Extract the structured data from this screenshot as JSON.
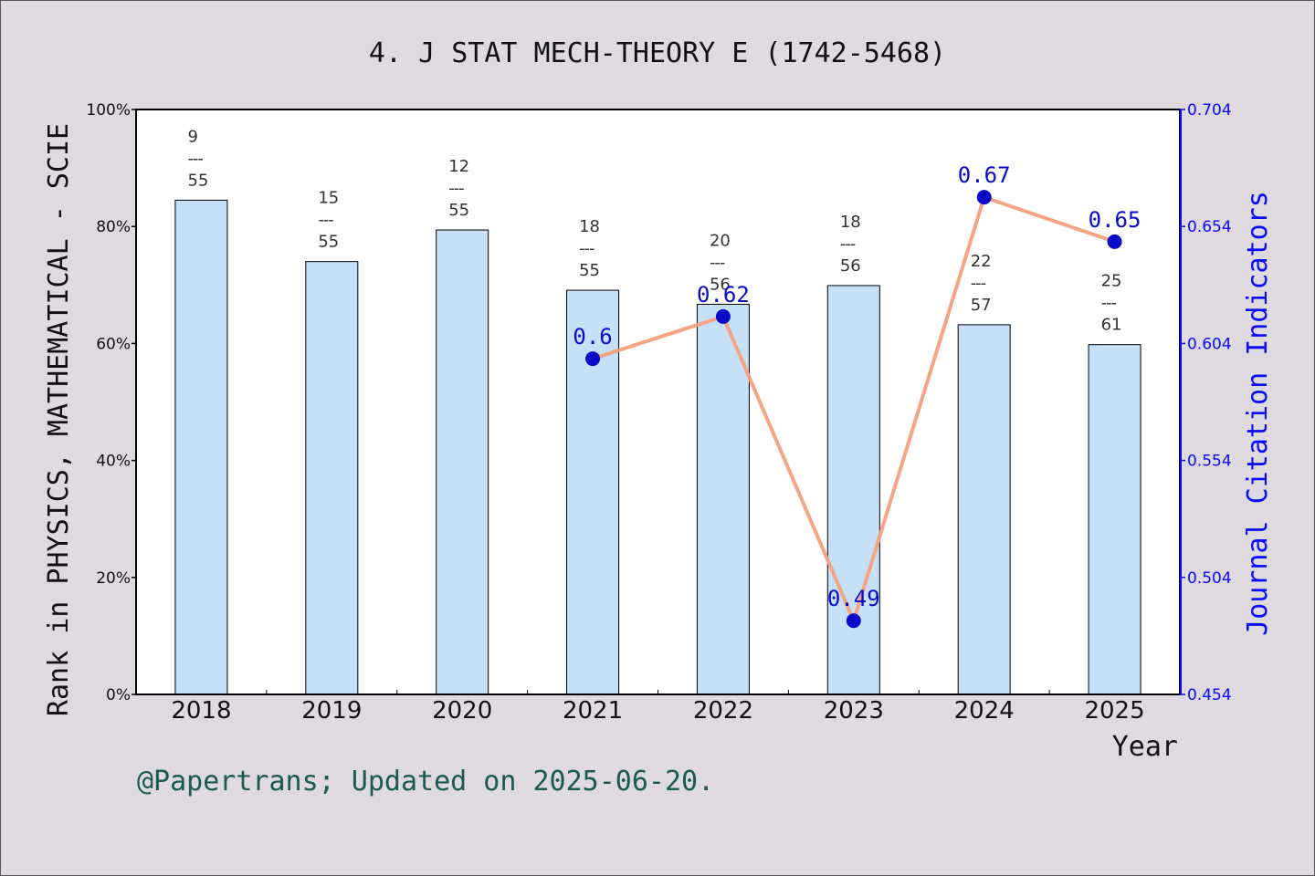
{
  "chart_data": {
    "type": "bar",
    "title": "4. J STAT MECH-THEORY E (1742-5468)",
    "xlabel": "Year",
    "ylabel": "Rank in PHYSICS, MATHEMATICAL - SCIE",
    "y2label": "Journal Citation Indicators",
    "categories": [
      "2018",
      "2019",
      "2020",
      "2021",
      "2022",
      "2023",
      "2024",
      "2025"
    ],
    "ylim": [
      0,
      100
    ],
    "yticks": [
      "0%",
      "20%",
      "40%",
      "60%",
      "80%",
      "100%"
    ],
    "y2lim": [
      0.454,
      0.704
    ],
    "y2ticks": [
      "0.454",
      "0.504",
      "0.554",
      "0.604",
      "0.654",
      "0.704"
    ],
    "grid": false,
    "series": [
      {
        "type": "bar",
        "values": [
          84.5,
          74.0,
          79.4,
          69.1,
          66.7,
          69.9,
          63.2,
          59.8
        ],
        "rank_labels": [
          {
            "rank": "9",
            "sep": "---",
            "total": "55"
          },
          {
            "rank": "15",
            "sep": "---",
            "total": "55"
          },
          {
            "rank": "12",
            "sep": "---",
            "total": "55"
          },
          {
            "rank": "18",
            "sep": "---",
            "total": "55"
          },
          {
            "rank": "20",
            "sep": "---",
            "total": "56"
          },
          {
            "rank": "18",
            "sep": "---",
            "total": "56"
          },
          {
            "rank": "22",
            "sep": "---",
            "total": "57"
          },
          {
            "rank": "25",
            "sep": "---",
            "total": "61"
          }
        ],
        "color": "#c5e0f7"
      },
      {
        "type": "line",
        "axis": "right",
        "x": [
          "2021",
          "2022",
          "2023",
          "2024",
          "2025"
        ],
        "values": [
          0.6,
          0.62,
          0.49,
          0.67,
          0.65
        ],
        "plot_values": [
          0.5975,
          0.6155,
          0.4855,
          0.6665,
          0.6475
        ],
        "labels": [
          "0.6",
          "0.62",
          "0.49",
          "0.67",
          "0.65"
        ],
        "color": "#f4a07c",
        "marker_color": "#0a0ac8"
      }
    ]
  },
  "footer": "@Papertrans; Updated on 2025-06-20."
}
